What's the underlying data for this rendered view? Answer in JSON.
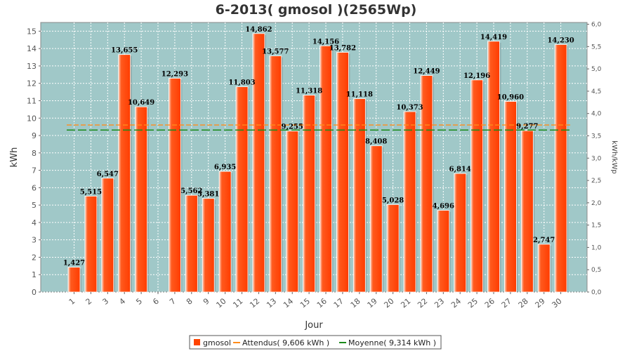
{
  "chart_data": {
    "type": "bar",
    "title": "6-2013( gmosol )(2565Wp)",
    "xlabel": "Jour",
    "ylabel": "kWh",
    "y2label": "kWh/kWp",
    "categories": [
      "1",
      "2",
      "3",
      "4",
      "5",
      "6",
      "7",
      "8",
      "9",
      "10",
      "11",
      "12",
      "13",
      "14",
      "15",
      "16",
      "17",
      "18",
      "19",
      "20",
      "21",
      "22",
      "23",
      "24",
      "25",
      "26",
      "27",
      "28",
      "29",
      "30"
    ],
    "series": [
      {
        "name": "gmosol",
        "values": [
          1.427,
          5.515,
          6.547,
          13.655,
          10.649,
          null,
          12.293,
          5.562,
          5.381,
          6.935,
          11.803,
          14.862,
          13.577,
          9.255,
          11.318,
          14.156,
          13.782,
          11.118,
          8.408,
          5.028,
          10.373,
          12.449,
          4.696,
          6.814,
          12.196,
          14.419,
          10.96,
          9.277,
          2.747,
          14.23
        ],
        "labels": [
          "1,427",
          "5,515",
          "6,547",
          "13,655",
          "10,649",
          "",
          "12,293",
          "5,562",
          "5,381",
          "6,935",
          "11,803",
          "14,862",
          "13,577",
          "9,255",
          "11,318",
          "14,156",
          "13,782",
          "11,118",
          "8,408",
          "5,028",
          "10,373",
          "12,449",
          "4,696",
          "6,814",
          "12,196",
          "14,419",
          "10,960",
          "9,277",
          "2,747",
          "14,230"
        ],
        "color": "#ff4400"
      }
    ],
    "reference_lines": [
      {
        "name": "Attendus( 9,606 kWh )",
        "value": 9.606,
        "color": "#ff8c1a"
      },
      {
        "name": "Moyenne( 9,314 kWh )",
        "value": 9.314,
        "color": "#1a8a1a"
      }
    ],
    "ylim": [
      0,
      15.5
    ],
    "yticks": [
      "0",
      "1",
      "2",
      "3",
      "4",
      "5",
      "6",
      "7",
      "8",
      "9",
      "10",
      "11",
      "12",
      "13",
      "14",
      "15"
    ],
    "y2lim": [
      0,
      6.04
    ],
    "y2ticks": [
      "0,0",
      "0,5",
      "1,0",
      "1,5",
      "2,0",
      "2,5",
      "3,0",
      "3,5",
      "4,0",
      "4,5",
      "5,0",
      "5,5",
      "6,0"
    ],
    "grid": true,
    "plot_background": "#a0c8c8",
    "legend_position": "bottom-center"
  }
}
